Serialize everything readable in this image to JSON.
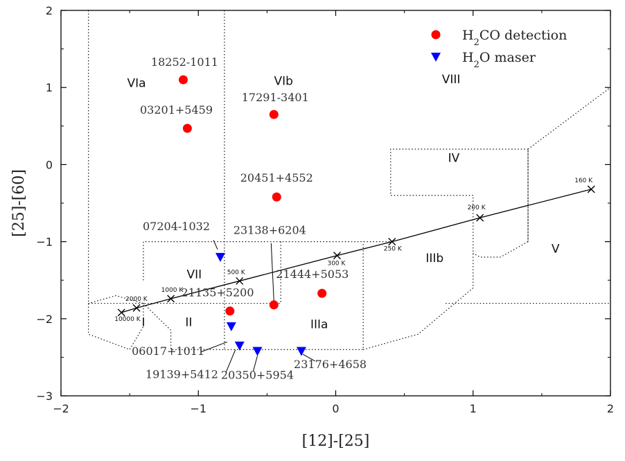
{
  "chart_data": {
    "type": "scatter",
    "xlabel": "[12]-[25]",
    "ylabel": "[25]-[60]",
    "xlim": [
      -2,
      2
    ],
    "ylim": [
      -3,
      2
    ],
    "xticks": [
      -2,
      -1,
      0,
      1,
      2
    ],
    "yticks": [
      -3,
      -2,
      -1,
      0,
      1,
      2
    ],
    "grid": false,
    "legend_position": "top-right",
    "legend": [
      {
        "label": "H",
        "sub": "2",
        "label_rest": "CO detection",
        "marker": "circle",
        "color": "#ff0000"
      },
      {
        "label": "H",
        "sub": "2",
        "label_rest": "O maser",
        "marker": "triangle-down",
        "color": "#0000ff"
      }
    ],
    "series": [
      {
        "name": "H2CO detection",
        "marker": "circle",
        "color": "#ff0000",
        "points": [
          {
            "x": -1.11,
            "y": 1.1,
            "label": "18252-1011"
          },
          {
            "x": -1.08,
            "y": 0.47,
            "label": "03201+5459"
          },
          {
            "x": -0.45,
            "y": 0.65,
            "label": "17291-3401"
          },
          {
            "x": -0.43,
            "y": -0.42,
            "label": "20451+4552"
          },
          {
            "x": -0.45,
            "y": -1.82,
            "label": "23138+6204"
          },
          {
            "x": -0.1,
            "y": -1.67,
            "label": "21444+5053"
          },
          {
            "x": -0.77,
            "y": -1.9,
            "label": "21135+5200"
          }
        ]
      },
      {
        "name": "H2O maser",
        "marker": "triangle-down",
        "color": "#0000ff",
        "points": [
          {
            "x": -0.84,
            "y": -1.2,
            "label": "07204-1032"
          },
          {
            "x": -0.76,
            "y": -2.1,
            "label": "06017+1011"
          },
          {
            "x": -0.7,
            "y": -2.35,
            "label": "19139+5412"
          },
          {
            "x": -0.57,
            "y": -2.42,
            "label": "20350+5954"
          },
          {
            "x": -0.25,
            "y": -2.42,
            "label": "23176+4658"
          }
        ]
      }
    ],
    "blackbody_line": {
      "points": [
        {
          "x": -1.56,
          "y": -1.92,
          "label": "10000 K"
        },
        {
          "x": -1.45,
          "y": -1.86,
          "label": "2000 K"
        },
        {
          "x": -1.2,
          "y": -1.74,
          "label": "1000 K"
        },
        {
          "x": -0.7,
          "y": -1.51,
          "label": "500 K"
        },
        {
          "x": 0.01,
          "y": -1.18,
          "label": "300 K"
        },
        {
          "x": 0.41,
          "y": -1.0,
          "label": "250 K"
        },
        {
          "x": 1.05,
          "y": -0.69,
          "label": "200 K"
        },
        {
          "x": 1.86,
          "y": -0.32,
          "label": "160 K"
        }
      ]
    },
    "regions": [
      "I",
      "II",
      "IIIa",
      "IIIb",
      "IV",
      "V",
      "VIa",
      "VIb",
      "VII",
      "VIII"
    ]
  }
}
